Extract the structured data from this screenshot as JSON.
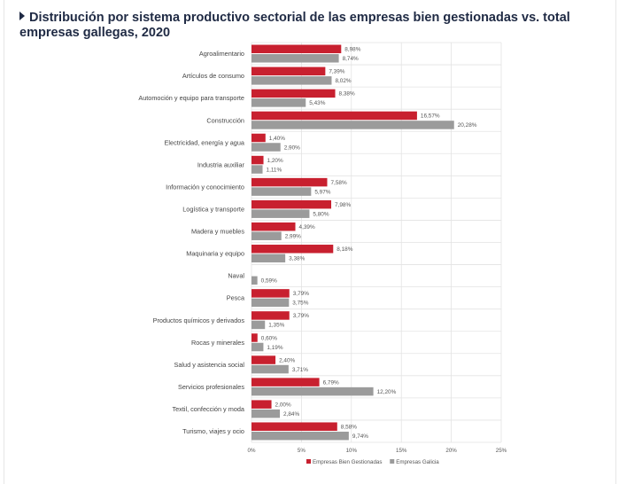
{
  "title": "Distribución por sistema productivo sectorial de las empresas bien gestionadas vs. total empresas gallegas, 2020",
  "chart_data": {
    "type": "bar",
    "orientation": "horizontal",
    "title": "Distribución por sistema productivo sectorial de las empresas bien gestionadas vs. total empresas gallegas, 2020",
    "categories": [
      "Agroalimentario",
      "Artículos de consumo",
      "Automoción y equipo para transporte",
      "Construcción",
      "Electricidad, energía y agua",
      "Industria auxiliar",
      "Información y conocimiento",
      "Logística y transporte",
      "Madera y muebles",
      "Maquinaria y equipo",
      "Naval",
      "Pesca",
      "Productos químicos y derivados",
      "Rocas y minerales",
      "Salud y asistencia social",
      "Servicios profesionales",
      "Textil, confección y moda",
      "Turismo, viajes y ocio"
    ],
    "series": [
      {
        "name": "Empresas Bien Gestionadas",
        "color": "#c8202f",
        "values": [
          8.98,
          7.39,
          8.38,
          16.57,
          1.4,
          1.2,
          7.58,
          7.98,
          4.39,
          8.18,
          null,
          3.79,
          3.79,
          0.6,
          2.4,
          6.79,
          2.0,
          8.58
        ],
        "labels": [
          "8,98%",
          "7,39%",
          "8,38%",
          "16,57%",
          "1,40%",
          "1,20%",
          "7,58%",
          "7,98%",
          "4,39%",
          "8,18%",
          "",
          "3,79%",
          "3,79%",
          "0,60%",
          "2,40%",
          "6,79%",
          "2,00%",
          "8,58%"
        ]
      },
      {
        "name": "Empresas Galicia",
        "color": "#9b9b9b",
        "values": [
          8.74,
          8.02,
          5.43,
          20.28,
          2.9,
          1.11,
          5.97,
          5.8,
          2.99,
          3.38,
          0.59,
          3.75,
          1.35,
          1.19,
          3.71,
          12.2,
          2.84,
          9.74
        ],
        "labels": [
          "8,74%",
          "8,02%",
          "5,43%",
          "20,28%",
          "2,90%",
          "1,11%",
          "5,97%",
          "5,80%",
          "2,99%",
          "3,38%",
          "0,59%",
          "3,75%",
          "1,35%",
          "1,19%",
          "3,71%",
          "12,20%",
          "2,84%",
          "9,74%"
        ]
      }
    ],
    "xlim": [
      0,
      25
    ],
    "xticks": [
      "0%",
      "5%",
      "10%",
      "15%",
      "20%",
      "25%"
    ],
    "grid": true,
    "legend_position": "bottom"
  }
}
